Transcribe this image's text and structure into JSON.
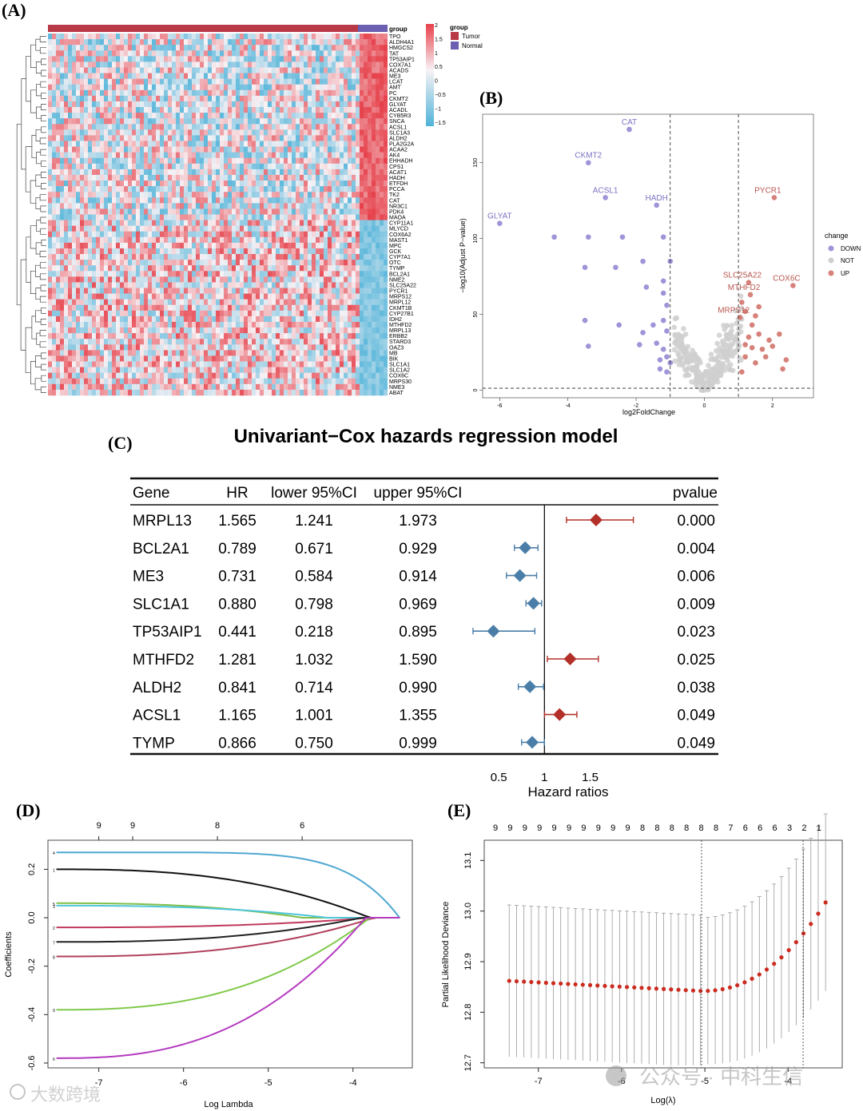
{
  "panels": {
    "A": "(A)",
    "B": "(B)",
    "C": "(C)",
    "D": "(D)",
    "E": "(E)"
  },
  "chart_data": [
    {
      "type": "heatmap",
      "panel": "A",
      "title": "",
      "group_label": "group",
      "legend_title": "group",
      "legend_groups": [
        {
          "name": "Tumor",
          "color": "#b83a46"
        },
        {
          "name": "Normal",
          "color": "#6a5fb0"
        }
      ],
      "scale_ticks": [
        "2",
        "1.5",
        "1",
        "0.5",
        "0",
        "−0.5",
        "−1",
        "−1.5"
      ],
      "rows": [
        "TPO",
        "ALDH4A1",
        "HMGCS2",
        "TAT",
        "TP53AIP1",
        "COX7A1",
        "ACADS",
        "ME3",
        "LCAT",
        "AMT",
        "PC",
        "CKMT2",
        "GLYAT",
        "ACADL",
        "CYB5R3",
        "SNCA",
        "ACSL1",
        "SLC1A3",
        "ALDH2",
        "PLA2G2A",
        "ACAA2",
        "AK4",
        "EHHADH",
        "CPS1",
        "ACAT1",
        "HADH",
        "ETFDH",
        "PCCA",
        "TK2",
        "CAT",
        "NR3C1",
        "PDK4",
        "MAOA",
        "CYP11A1",
        "MLYCD",
        "COX6A2",
        "MAST1",
        "MPC",
        "GCK",
        "CYP7A1",
        "OTC",
        "TYMP",
        "BCL2A1",
        "NME2",
        "SLC25A22",
        "PYCR1",
        "MRPS12",
        "MRPL12",
        "CKMT1B",
        "CYP27B1",
        "IDH2",
        "MTHFD2",
        "MRPL13",
        "ERBB2",
        "STARD3",
        "OAZ3",
        "MB",
        "BIK",
        "SLC1A1",
        "SLC1A2",
        "COX6C",
        "MRPS30",
        "NME3",
        "ABAT"
      ],
      "colors": {
        "high": "#e8404a",
        "mid": "#f7f2f5",
        "low": "#4fb3d9"
      }
    },
    {
      "type": "scatter",
      "panel": "B",
      "title": "",
      "xlabel": "log2FoldChange",
      "ylabel": "−log10(Adjust P−value)",
      "xlim": [
        -6.5,
        3.2
      ],
      "ylim": [
        -5,
        182
      ],
      "xticks": [
        -6,
        -4,
        -2,
        0,
        2
      ],
      "yticks": [
        0,
        50,
        100,
        150
      ],
      "vlines": [
        -1,
        1
      ],
      "hline": 1.3,
      "legend_title": "change",
      "legend": [
        {
          "name": "DOWN",
          "color": "#9d95d8"
        },
        {
          "name": "NOT",
          "color": "#cfcfcf"
        },
        {
          "name": "UP",
          "color": "#d6817a"
        }
      ],
      "labels": [
        {
          "gene": "CAT",
          "x": -2.2,
          "y": 172
        },
        {
          "gene": "CKMT2",
          "x": -3.4,
          "y": 150
        },
        {
          "gene": "ACSL1",
          "x": -2.9,
          "y": 127
        },
        {
          "gene": "HADH",
          "x": -1.4,
          "y": 122
        },
        {
          "gene": "GLYAT",
          "x": -6.0,
          "y": 110
        },
        {
          "gene": "PYCR1",
          "x": 2.05,
          "y": 127
        },
        {
          "gene": "SLC25A22",
          "x": 1.3,
          "y": 71
        },
        {
          "gene": "COX6C",
          "x": 2.6,
          "y": 69
        },
        {
          "gene": "MTHFD2",
          "x": 1.35,
          "y": 63
        },
        {
          "gene": "MRPS12",
          "x": 1.05,
          "y": 48
        }
      ],
      "down_points": [
        [
          -4.4,
          101
        ],
        [
          -3.4,
          101
        ],
        [
          -2.4,
          101
        ],
        [
          -1.2,
          101
        ],
        [
          -3.5,
          81
        ],
        [
          -2.6,
          81
        ],
        [
          -1.8,
          85
        ],
        [
          -1.0,
          85
        ],
        [
          -1.7,
          68
        ],
        [
          -1.2,
          72
        ],
        [
          -3.5,
          46
        ],
        [
          -2.5,
          43
        ],
        [
          -1.5,
          43
        ],
        [
          -1.2,
          46
        ],
        [
          -1.8,
          38
        ],
        [
          -3.4,
          29
        ],
        [
          -1.9,
          30
        ],
        [
          -1.4,
          31
        ],
        [
          -1.2,
          27
        ],
        [
          -1.1,
          39
        ],
        [
          -1.3,
          20
        ],
        [
          -1.1,
          22
        ],
        [
          -1.3,
          14
        ],
        [
          -1.1,
          12
        ],
        [
          -1.2,
          64
        ],
        [
          -1.1,
          56
        ],
        [
          -1.0,
          18
        ]
      ],
      "up_points": [
        [
          1.1,
          58
        ],
        [
          1.2,
          52
        ],
        [
          1.5,
          49
        ],
        [
          1.6,
          55
        ],
        [
          1.4,
          43
        ],
        [
          1.3,
          35
        ],
        [
          1.6,
          37
        ],
        [
          1.9,
          33
        ],
        [
          2.2,
          37
        ],
        [
          1.2,
          30
        ],
        [
          1.4,
          28
        ],
        [
          1.7,
          27
        ],
        [
          1.8,
          22
        ],
        [
          2.0,
          29
        ],
        [
          2.4,
          20
        ],
        [
          2.3,
          14
        ],
        [
          1.1,
          12
        ],
        [
          1.2,
          22
        ],
        [
          1.5,
          18
        ]
      ],
      "not_points_count": 260
    },
    {
      "type": "table",
      "panel": "C",
      "title": "Univariant−Cox hazards regression model",
      "columns": [
        "Gene",
        "HR",
        "lower 95%CI",
        "upper 95%CI",
        "pvalue"
      ],
      "rows": [
        {
          "gene": "MRPL13",
          "hr": "1.565",
          "lower": "1.241",
          "upper": "1.973",
          "pvalue": "0.000"
        },
        {
          "gene": "BCL2A1",
          "hr": "0.789",
          "lower": "0.671",
          "upper": "0.929",
          "pvalue": "0.004"
        },
        {
          "gene": "ME3",
          "hr": "0.731",
          "lower": "0.584",
          "upper": "0.914",
          "pvalue": "0.006"
        },
        {
          "gene": "SLC1A1",
          "hr": "0.880",
          "lower": "0.798",
          "upper": "0.969",
          "pvalue": "0.009"
        },
        {
          "gene": "TP53AIP1",
          "hr": "0.441",
          "lower": "0.218",
          "upper": "0.895",
          "pvalue": "0.023"
        },
        {
          "gene": "MTHFD2",
          "hr": "1.281",
          "lower": "1.032",
          "upper": "1.590",
          "pvalue": "0.025"
        },
        {
          "gene": "ALDH2",
          "hr": "0.841",
          "lower": "0.714",
          "upper": "0.990",
          "pvalue": "0.038"
        },
        {
          "gene": "ACSL1",
          "hr": "1.165",
          "lower": "1.001",
          "upper": "1.355",
          "pvalue": "0.049"
        },
        {
          "gene": "TYMP",
          "hr": "0.866",
          "lower": "0.750",
          "upper": "0.999",
          "pvalue": "0.049"
        }
      ],
      "xlabel": "Hazard ratios",
      "xticks": [
        "0.5",
        "1",
        "1.5"
      ],
      "xlim": [
        0.0,
        2.3
      ],
      "ref_line": 1,
      "colors": {
        "risk": "#b3302a",
        "protective": "#4a7ea8"
      }
    },
    {
      "type": "line",
      "panel": "D",
      "xlabel": "Log Lambda",
      "ylabel": "Coefficients",
      "xlim": [
        -7.6,
        -3.3
      ],
      "ylim": [
        -0.62,
        0.32
      ],
      "xticks": [
        "-7",
        "-6",
        "-5",
        "-4"
      ],
      "yticks": [
        "-0.6",
        "-0.4",
        "-0.2",
        "0.0",
        "0.2"
      ],
      "top_ticks": [
        "9",
        "9",
        "8",
        "6"
      ],
      "series": [
        {
          "name": "4",
          "color": "#4ea7d1",
          "start": 0.27
        },
        {
          "name": "1",
          "color": "#111111",
          "start": 0.2
        },
        {
          "name": "5",
          "color": "#7fbf4a",
          "start": 0.06
        },
        {
          "name": "3",
          "color": "#4ec6d9",
          "start": 0.05
        },
        {
          "name": "2",
          "color": "#c0395a",
          "start": -0.04
        },
        {
          "name": "7",
          "color": "#222222",
          "start": -0.1
        },
        {
          "name": "8",
          "color": "#b0405e",
          "start": -0.16
        },
        {
          "name": "9",
          "color": "#7fc94a",
          "start": -0.38
        },
        {
          "name": "6",
          "color": "#b43ac0",
          "start": -0.58
        }
      ]
    },
    {
      "type": "scatter",
      "panel": "E",
      "xlabel": "Log(λ)",
      "ylabel": "Partial Likelihood Deviance",
      "xlim": [
        -7.65,
        -3.35
      ],
      "ylim": [
        12.69,
        13.14
      ],
      "xticks": [
        "-7",
        "-6",
        "-5",
        "-4"
      ],
      "yticks": [
        "12.7",
        "12.8",
        "12.9",
        "13.0",
        "13.1"
      ],
      "top_ticks": [
        "9",
        "9",
        "9",
        "9",
        "9",
        "9",
        "9",
        "9",
        "9",
        "9",
        "8",
        "8",
        "8",
        "8",
        "8",
        "8",
        "7",
        "6",
        "6",
        "6",
        "3",
        "2",
        "1"
      ],
      "vlines": [
        -5.04,
        -3.82
      ],
      "n_points": 44,
      "color": "#cc2b1f"
    }
  ],
  "watermark": {
    "left": "大数跨境",
    "right": "公众号 · 中科生信"
  }
}
